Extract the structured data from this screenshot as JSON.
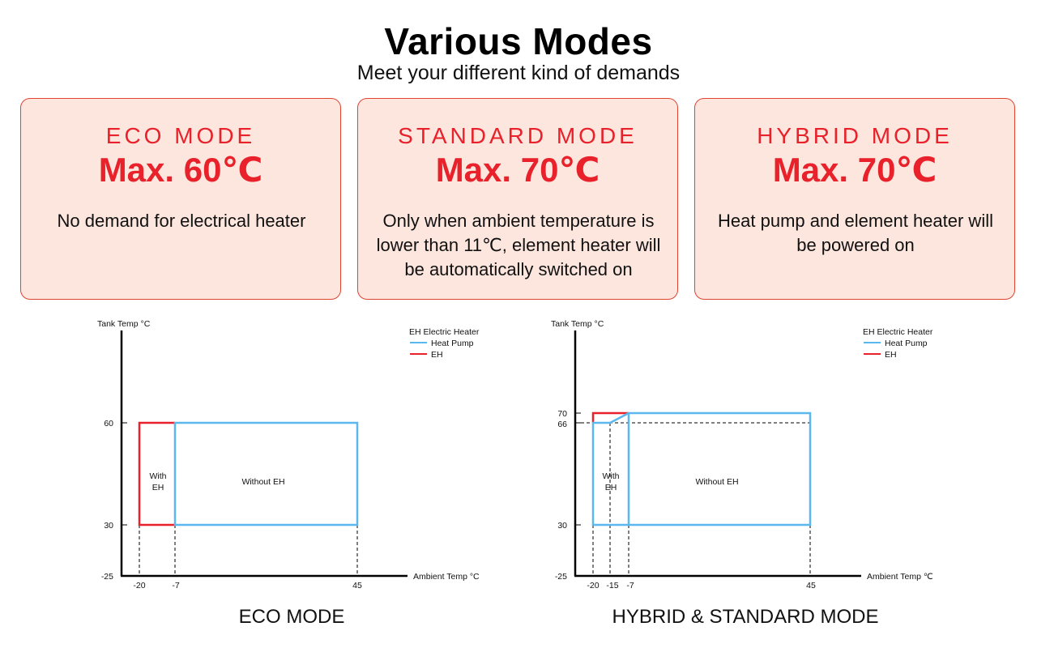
{
  "header": {
    "title": "Various Modes",
    "subtitle": "Meet your different kind of demands"
  },
  "cards": [
    {
      "name": "ECO MODE",
      "max_temp": "Max. 60℃",
      "description": "No demand for electrical heater"
    },
    {
      "name": "STANDARD MODE",
      "max_temp": "Max. 70℃",
      "description": "Only when ambient temperature is lower than 11℃, element heater will be automatically switched on"
    },
    {
      "name": "HYBRID MODE",
      "max_temp": "Max. 70℃",
      "description": "Heat pump and element heater will be powered on"
    }
  ],
  "colors": {
    "accent_red": "#e8212b",
    "card_bg": "#fde6de",
    "heat_pump_blue": "#5bb8ef"
  },
  "charts": [
    {
      "caption": "ECO MODE",
      "y_axis_title": "Tank Temp °C",
      "x_axis_title": "Ambient Temp °C",
      "y_ticks": [
        "60",
        "30",
        "-25"
      ],
      "x_ticks": [
        "-20",
        "-7",
        "45"
      ],
      "legend": {
        "title": "EH Electric Heater",
        "heat_pump": "Heat Pump",
        "eh": "EH"
      },
      "region_with_eh": [
        "With",
        "EH"
      ],
      "region_without_eh": "Without EH"
    },
    {
      "caption": "HYBRID & STANDARD MODE",
      "y_axis_title": "Tank Temp °C",
      "x_axis_title": "Ambient Temp ℃",
      "y_ticks": [
        "70",
        "66",
        "30",
        "-25"
      ],
      "x_ticks": [
        "-20",
        "-15",
        "-7",
        "45"
      ],
      "legend": {
        "title": "EH Electric Heater",
        "heat_pump": "Heat Pump",
        "eh": "EH"
      },
      "region_with_eh": [
        "With",
        "EH"
      ],
      "region_without_eh": "Without EH"
    }
  ]
}
